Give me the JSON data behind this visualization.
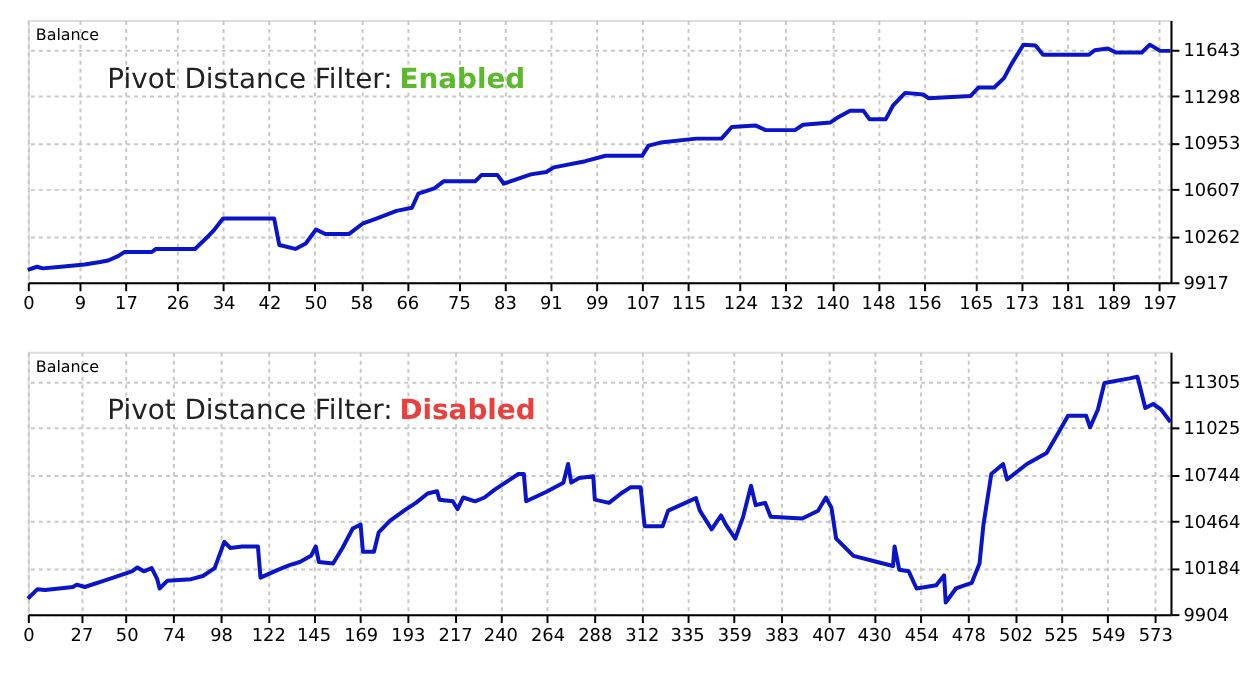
{
  "chart_data": [
    {
      "type": "line",
      "annotations": [
        "Balance",
        "Pivot Distance Filter: Enabled"
      ],
      "grid": true,
      "xlim": [
        0,
        199
      ],
      "ylim": [
        9917,
        11860
      ],
      "xticks": [
        0,
        9,
        17,
        26,
        34,
        42,
        50,
        58,
        66,
        75,
        83,
        91,
        99,
        107,
        115,
        124,
        132,
        140,
        148,
        156,
        165,
        173,
        181,
        189,
        197
      ],
      "yticks": [
        9917,
        10262,
        10607,
        10953,
        11298,
        11643
      ],
      "x": [
        0,
        1.6,
        2.6,
        5.8,
        9.9,
        12.6,
        14,
        15.8,
        16.8,
        21.6,
        22.3,
        29.1,
        30.1,
        31.5,
        32.3,
        34,
        42.9,
        43.8,
        46.6,
        48.4,
        50.2,
        51.8,
        55.9,
        58.4,
        60.7,
        64.2,
        66.9,
        68,
        70.8,
        72.4,
        77.9,
        79,
        81.8,
        82.9,
        84.8,
        87.6,
        90.3,
        91.6,
        97.1,
        100.6,
        107,
        108.1,
        110.2,
        116.4,
        120.8,
        122.6,
        126.7,
        128.5,
        133.6,
        135,
        139.8,
        141.2,
        143.2,
        145.5,
        146.6,
        149.4,
        150.7,
        152.8,
        155.9,
        156.9,
        164.2,
        165.6,
        168.3,
        170,
        171.3,
        173.4,
        175.5,
        176.8,
        184.8,
        185.8,
        188.1,
        189.5,
        194,
        195.4,
        197.2,
        199
      ],
      "series": [
        {
          "color": "#0a14c8",
          "values": [
            10009,
            10032,
            10020,
            10032,
            10049,
            10067,
            10078,
            10113,
            10141,
            10141,
            10164,
            10164,
            10204,
            10262,
            10297,
            10389,
            10389,
            10193,
            10164,
            10204,
            10308,
            10274,
            10274,
            10354,
            10389,
            10446,
            10469,
            10573,
            10613,
            10665,
            10665,
            10711,
            10711,
            10647,
            10676,
            10716,
            10734,
            10768,
            10814,
            10854,
            10854,
            10929,
            10952,
            10981,
            10981,
            11067,
            11079,
            11044,
            11044,
            11084,
            11101,
            11142,
            11188,
            11188,
            11124,
            11124,
            11228,
            11320,
            11308,
            11280,
            11297,
            11360,
            11360,
            11429,
            11533,
            11677,
            11671,
            11602,
            11602,
            11636,
            11648,
            11619,
            11619,
            11677,
            11631,
            11631
          ]
        }
      ]
    },
    {
      "type": "line",
      "annotations": [
        "Balance",
        "Pivot Distance Filter: Disabled"
      ],
      "grid": true,
      "xlim": [
        0,
        581
      ],
      "ylim": [
        9904,
        11478
      ],
      "xticks": [
        0,
        27,
        50,
        74,
        98,
        122,
        145,
        169,
        193,
        217,
        240,
        264,
        288,
        312,
        335,
        359,
        383,
        407,
        430,
        454,
        478,
        502,
        525,
        549,
        573
      ],
      "yticks": [
        9904,
        10184,
        10464,
        10744,
        11025,
        11305
      ],
      "x": [
        0,
        4.8,
        8.8,
        22.9,
        24.9,
        28.9,
        38.9,
        52.9,
        55.7,
        58.9,
        63,
        65.8,
        67,
        71,
        83,
        89,
        95,
        99.9,
        103,
        109,
        117,
        118.3,
        127.1,
        133.1,
        138.3,
        144,
        146.4,
        148,
        155.2,
        160,
        165.2,
        169.2,
        170.4,
        176,
        178.4,
        184.1,
        191.3,
        197.3,
        203.3,
        208.1,
        209.3,
        216.1,
        218.5,
        221.4,
        227.4,
        232.2,
        237.4,
        249.4,
        252.2,
        253.4,
        263.5,
        272.3,
        274.7,
        276.3,
        280.3,
        287.5,
        288.3,
        295.5,
        301.6,
        306.4,
        311.6,
        313.6,
        322.8,
        325.6,
        339.7,
        341.7,
        347.7,
        352.5,
        354.9,
        359.7,
        363.7,
        367.7,
        370.1,
        374.9,
        377.7,
        393.8,
        401.8,
        405.8,
        408.6,
        411,
        419.8,
        431.9,
        439.9,
        440.7,
        443.1,
        447.9,
        451.9,
        461.9,
        465.9,
        466.7,
        471.9,
        479.9,
        483.9,
        485.9,
        489.9,
        495.9,
        497.9,
        508,
        518,
        524,
        528.9,
        538.1,
        540.1,
        544.1,
        547.4,
        560.2,
        564.2,
        568.2,
        572.2,
        576.2,
        581
      ],
      "series": [
        {
          "color": "#0a14c8",
          "values": [
            9997,
            10053,
            10049,
            10067,
            10081,
            10067,
            10105,
            10161,
            10184,
            10161,
            10180,
            10114,
            10058,
            10105,
            10114,
            10133,
            10180,
            10338,
            10301,
            10310,
            10310,
            10123,
            10170,
            10198,
            10217,
            10254,
            10310,
            10217,
            10208,
            10301,
            10418,
            10441,
            10278,
            10278,
            10394,
            10464,
            10525,
            10572,
            10628,
            10642,
            10591,
            10581,
            10534,
            10604,
            10581,
            10604,
            10651,
            10745,
            10745,
            10581,
            10637,
            10693,
            10805,
            10693,
            10721,
            10731,
            10591,
            10572,
            10628,
            10665,
            10665,
            10432,
            10432,
            10525,
            10600,
            10525,
            10413,
            10497,
            10441,
            10357,
            10488,
            10675,
            10558,
            10572,
            10488,
            10478,
            10525,
            10604,
            10543,
            10357,
            10254,
            10217,
            10193,
            10310,
            10170,
            10161,
            10058,
            10077,
            10137,
            9974,
            10058,
            10091,
            10208,
            10441,
            10745,
            10805,
            10712,
            10805,
            10871,
            10992,
            11095,
            11095,
            11025,
            11132,
            11291,
            11319,
            11329,
            11141,
            11165,
            11132,
            11057
          ]
        }
      ]
    }
  ]
}
